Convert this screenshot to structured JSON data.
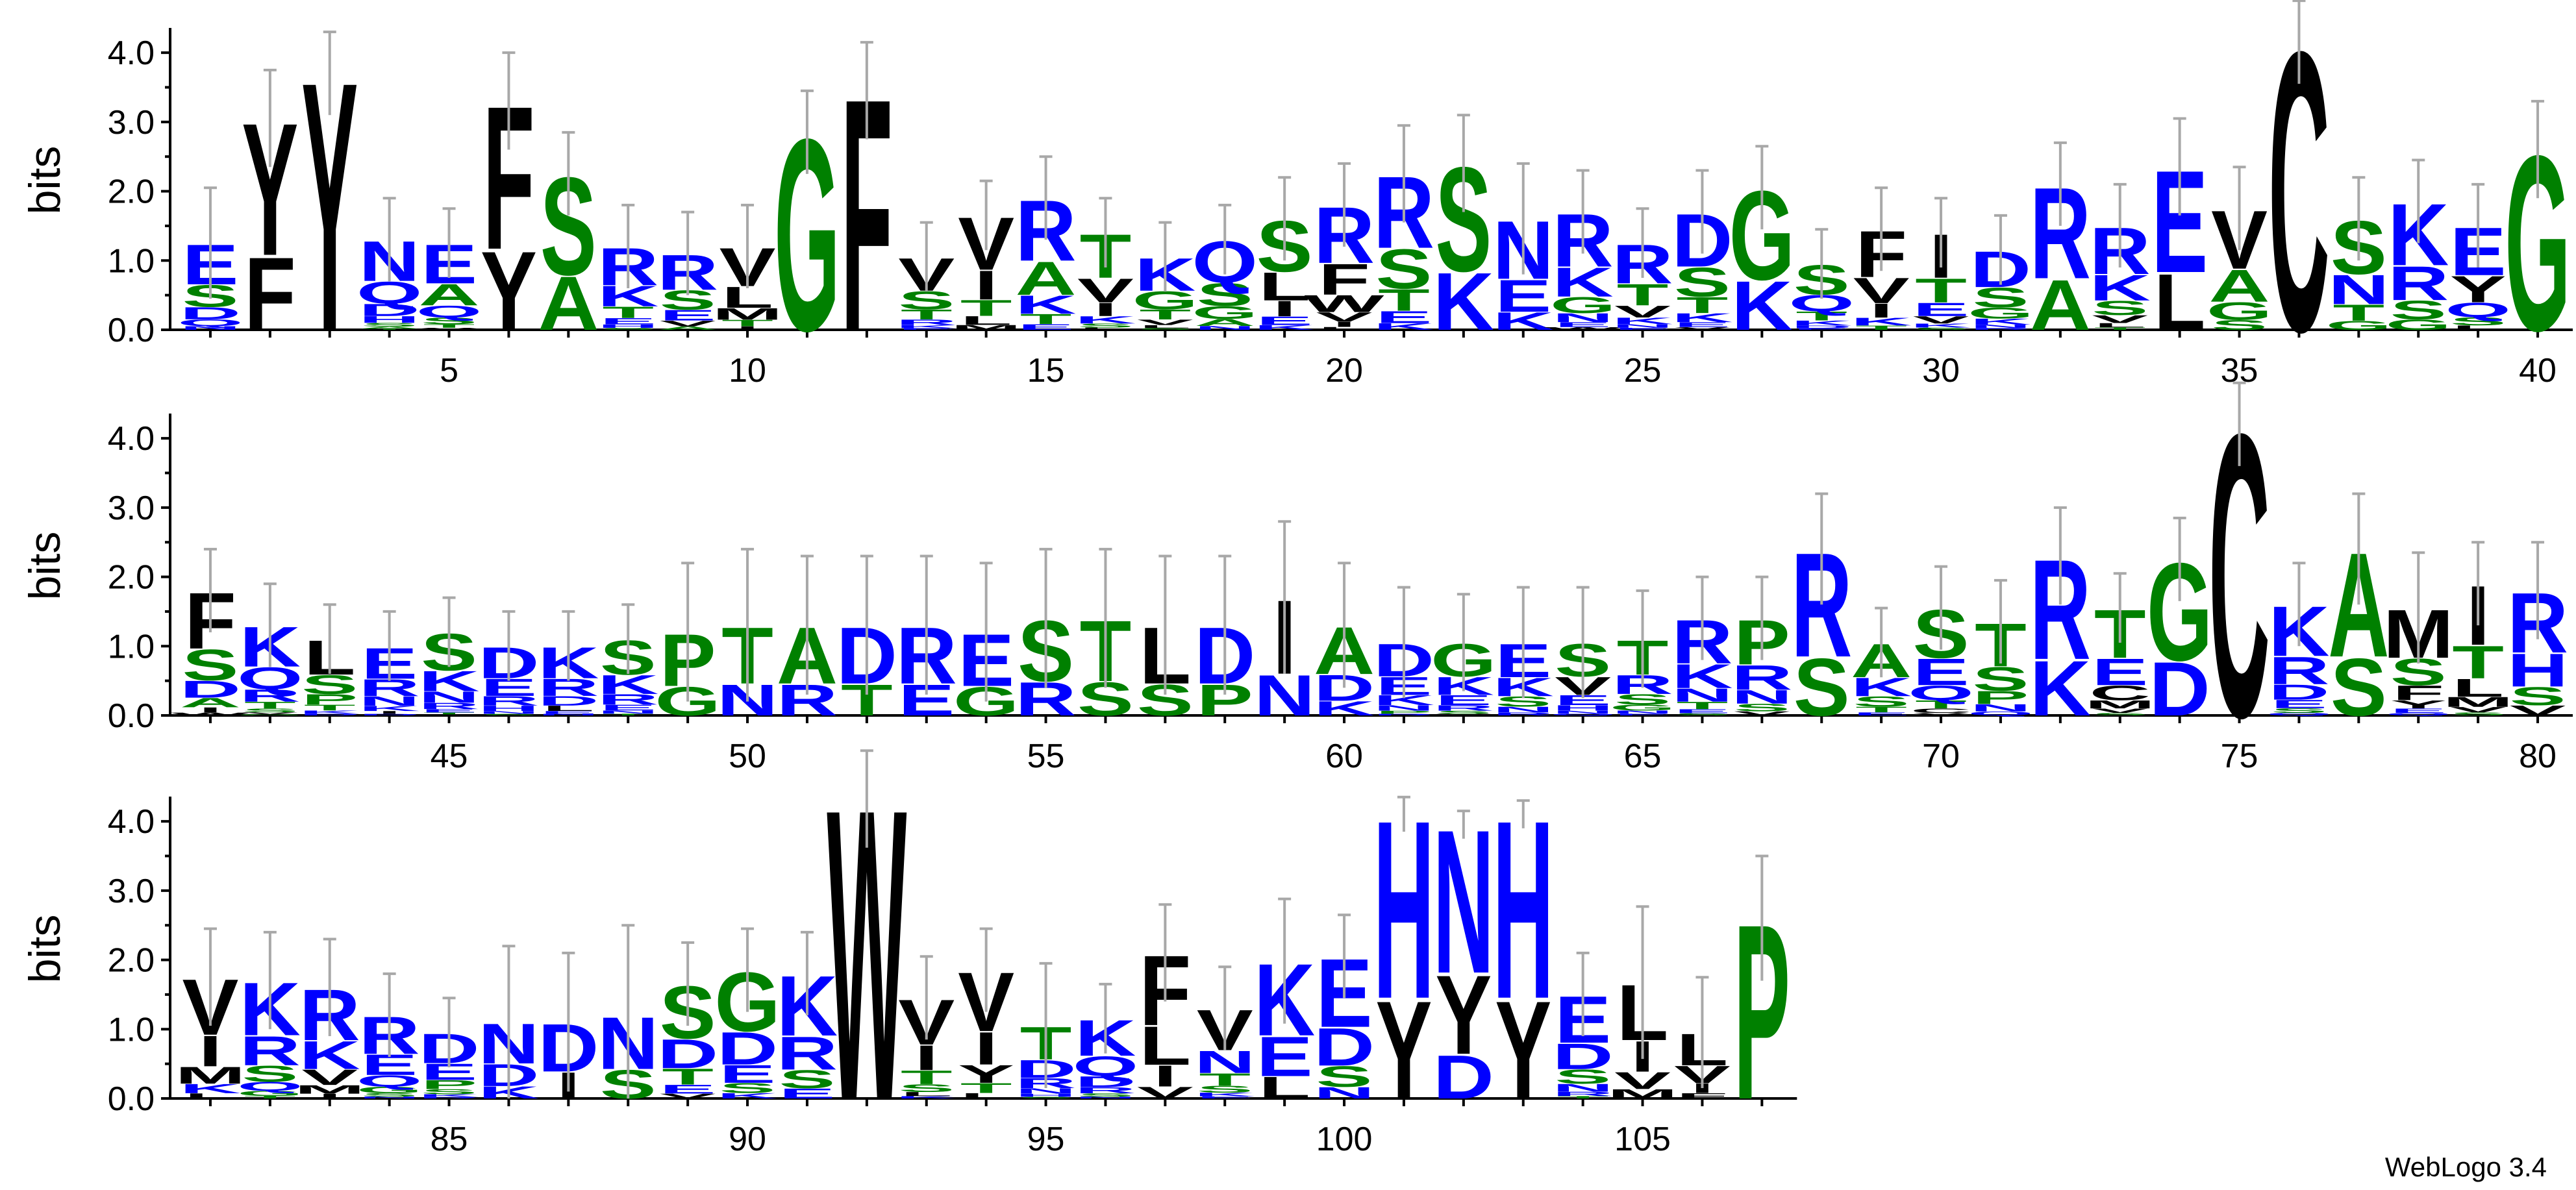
{
  "chart_data": {
    "type": "sequence-logo",
    "ylabel": "bits",
    "ylim": [
      0,
      4.32
    ],
    "yticks": [
      "0.0",
      "1.0",
      "2.0",
      "3.0",
      "4.0"
    ],
    "positions_per_row": 40,
    "xtick_labels": [
      "5",
      "10",
      "15",
      "20",
      "25",
      "30",
      "35",
      "40",
      "45",
      "50",
      "55",
      "60",
      "65",
      "70",
      "75",
      "80",
      "85",
      "90",
      "95",
      "100",
      "105"
    ],
    "colors": {
      "black": "#000000",
      "blue": "#0000ff",
      "green": "#008000"
    },
    "footer": "WebLogo 3.4",
    "positions": [
      [
        1,
        1.25,
        "ESDQN",
        0.8
      ],
      [
        2,
        3.05,
        "YF",
        0.7
      ],
      [
        3,
        3.7,
        "Y",
        0.6
      ],
      [
        4,
        1.3,
        "NQDHSAT",
        0.6
      ],
      [
        5,
        1.25,
        "EAQSTV",
        0.5
      ],
      [
        6,
        3.3,
        "FY",
        0.7
      ],
      [
        7,
        2.25,
        "SA",
        0.6
      ],
      [
        8,
        1.2,
        "RKTEHS",
        0.6
      ],
      [
        9,
        1.1,
        "RSEVA",
        0.6
      ],
      [
        10,
        1.2,
        "VLMTI",
        0.6
      ],
      [
        11,
        2.85,
        "G",
        0.6
      ],
      [
        12,
        3.45,
        "F",
        0.7
      ],
      [
        13,
        1.05,
        "VSTRKE",
        0.5
      ],
      [
        14,
        1.65,
        "VITLM",
        0.5
      ],
      [
        15,
        1.9,
        "RAKTE",
        0.6
      ],
      [
        16,
        1.4,
        "TVIKSL",
        0.5
      ],
      [
        17,
        1.05,
        "KGTVLS",
        0.5
      ],
      [
        18,
        1.3,
        "QSGAN",
        0.5
      ],
      [
        19,
        1.6,
        "SLIEK",
        0.6
      ],
      [
        20,
        1.8,
        "RFWVIL",
        0.6
      ],
      [
        21,
        2.25,
        "RSTEK",
        0.7
      ],
      [
        22,
        2.4,
        "SK",
        0.7
      ],
      [
        23,
        1.6,
        "NEK",
        0.8
      ],
      [
        24,
        1.7,
        "RKGNEW",
        0.6
      ],
      [
        25,
        1.25,
        "RTVKNE",
        0.5
      ],
      [
        26,
        1.7,
        "DSTKEV",
        0.6
      ],
      [
        27,
        2.05,
        "GK",
        0.6
      ],
      [
        28,
        0.95,
        "SQTKDE",
        0.5
      ],
      [
        29,
        1.45,
        "FVIKT",
        0.6
      ],
      [
        30,
        1.4,
        "ITEVKS",
        0.5
      ],
      [
        31,
        1.15,
        "DSGKNR",
        0.5
      ],
      [
        32,
        2.1,
        "RA",
        0.6
      ],
      [
        33,
        1.5,
        "RKSVLT",
        0.6
      ],
      [
        34,
        2.35,
        "EL",
        0.7
      ],
      [
        35,
        1.75,
        "VAGS",
        0.6
      ],
      [
        36,
        4.15,
        "C",
        0.6
      ],
      [
        37,
        1.6,
        "SNTG",
        0.6
      ],
      [
        38,
        1.85,
        "KRSG",
        0.6
      ],
      [
        39,
        1.5,
        "EYQSL",
        0.6
      ],
      [
        40,
        2.6,
        "G",
        0.7
      ],
      [
        41,
        1.8,
        "FSDAIW",
        0.6
      ],
      [
        42,
        1.3,
        "KQRTSVG",
        0.6
      ],
      [
        43,
        1.1,
        "LSPTKD",
        0.5
      ],
      [
        44,
        1.0,
        "ERNKIDS",
        0.5
      ],
      [
        45,
        1.2,
        "SKNRETV",
        0.5
      ],
      [
        46,
        1.0,
        "DERHNS",
        0.5
      ],
      [
        47,
        1.0,
        "KRDLEN",
        0.5
      ],
      [
        48,
        1.1,
        "SKRENT",
        0.5
      ],
      [
        49,
        1.2,
        "PG",
        1.0
      ],
      [
        50,
        1.3,
        "TN",
        1.1
      ],
      [
        51,
        1.3,
        "AR",
        1.0
      ],
      [
        52,
        1.3,
        "DT",
        1.0
      ],
      [
        53,
        1.3,
        "RE",
        1.0
      ],
      [
        54,
        1.2,
        "EG",
        1.0
      ],
      [
        55,
        1.4,
        "SR",
        1.0
      ],
      [
        56,
        1.4,
        "TS",
        1.0
      ],
      [
        57,
        1.3,
        "LS",
        1.0
      ],
      [
        58,
        1.3,
        "DP",
        1.0
      ],
      [
        59,
        1.7,
        "IN",
        1.1
      ],
      [
        60,
        1.3,
        "ADK",
        0.9
      ],
      [
        61,
        1.05,
        "DEKNPR",
        0.8
      ],
      [
        62,
        1.05,
        "GKERSV",
        0.7
      ],
      [
        63,
        1.05,
        "EKSNR",
        0.8
      ],
      [
        64,
        1.05,
        "SVEHNQ",
        0.8
      ],
      [
        65,
        1.1,
        "TRSGNE",
        0.7
      ],
      [
        66,
        1.4,
        "RKNTES",
        0.6
      ],
      [
        67,
        1.4,
        "PRNSV",
        0.6
      ],
      [
        68,
        2.4,
        "RS",
        0.8
      ],
      [
        69,
        1.05,
        "AKSTE",
        0.5
      ],
      [
        70,
        1.55,
        "SEQTCV",
        0.6
      ],
      [
        71,
        1.35,
        "TSPNQ",
        0.6
      ],
      [
        72,
        2.3,
        "RK",
        0.7
      ],
      [
        73,
        1.55,
        "TECMVS",
        0.5
      ],
      [
        74,
        2.25,
        "GD",
        0.6
      ],
      [
        75,
        4.2,
        "C",
        0.6
      ],
      [
        76,
        1.6,
        "KRDESQ",
        0.6
      ],
      [
        77,
        2.4,
        "AS",
        0.8
      ],
      [
        78,
        1.55,
        "MSFYEQ",
        0.8
      ],
      [
        79,
        1.9,
        "ITLMVS",
        0.6
      ],
      [
        80,
        1.8,
        "RHSV",
        0.7
      ],
      [
        81,
        1.75,
        "VIMKL",
        0.7
      ],
      [
        82,
        1.7,
        "KRSQGT",
        0.7
      ],
      [
        83,
        1.6,
        "RKVMI",
        0.7
      ],
      [
        84,
        1.2,
        "REQGSN",
        0.6
      ],
      [
        85,
        0.95,
        "DEPSKR",
        0.5
      ],
      [
        86,
        1.1,
        "NDK",
        1.1
      ],
      [
        87,
        1.1,
        "DI",
        1.0
      ],
      [
        88,
        1.2,
        "NS",
        1.3
      ],
      [
        89,
        1.65,
        "SDTEV",
        0.6
      ],
      [
        90,
        1.85,
        "GDESK",
        0.6
      ],
      [
        91,
        1.8,
        "KRSE",
        0.6
      ],
      [
        92,
        4.32,
        "W",
        0.7
      ],
      [
        93,
        1.45,
        "VITSLK",
        0.6
      ],
      [
        94,
        1.85,
        "VIYTL",
        0.6
      ],
      [
        95,
        1.05,
        "TDRNHS",
        0.9
      ],
      [
        96,
        1.15,
        "KQDRSN",
        0.5
      ],
      [
        97,
        2.1,
        "FLIV",
        0.7
      ],
      [
        98,
        1.3,
        "VNTSKE",
        0.6
      ],
      [
        99,
        1.98,
        "KEL",
        0.9
      ],
      [
        100,
        2.05,
        "EDSN",
        0.6
      ],
      [
        101,
        4.1,
        "HY",
        0.25
      ],
      [
        102,
        3.95,
        "NYD",
        0.2
      ],
      [
        103,
        4.1,
        "HY",
        0.2
      ],
      [
        104,
        1.5,
        "EDSNRT",
        0.6
      ],
      [
        105,
        1.67,
        "LIVM",
        1.1
      ],
      [
        106,
        0.95,
        "LVIF",
        0.8
      ],
      [
        107,
        2.6,
        "P",
        0.9
      ]
    ]
  }
}
